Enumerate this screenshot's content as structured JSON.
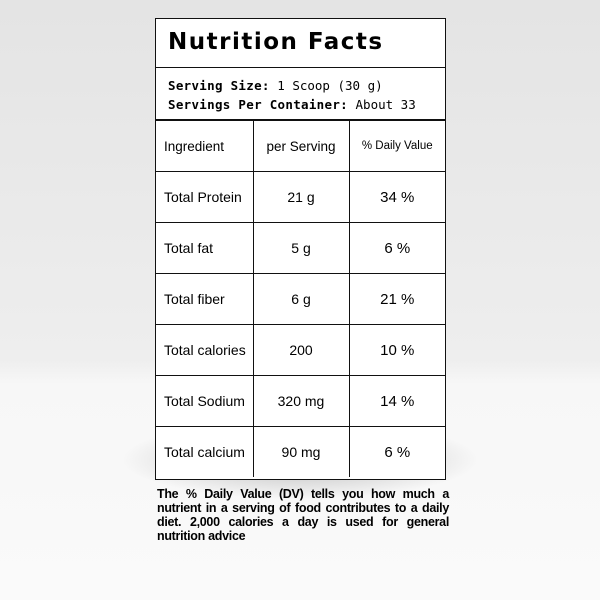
{
  "header": {
    "title": "Nutrition Facts"
  },
  "serving": {
    "size_label": "Serving Size:",
    "size_value": "1 Scoop (30 g)",
    "container_label": "Servings Per Container:",
    "container_value": "About 33"
  },
  "table": {
    "columns": [
      "Ingredient",
      "per Serving",
      "% Daily Value"
    ],
    "rows": [
      [
        "Total Protein",
        "21 g",
        "34 %"
      ],
      [
        "Total fat",
        "5 g",
        "6 %"
      ],
      [
        "Total fiber",
        "6 g",
        "21 %"
      ],
      [
        "Total calories",
        "200",
        "10 %"
      ],
      [
        "Total Sodium",
        "320 mg",
        "14 %"
      ],
      [
        "Total calcium",
        "90 mg",
        "6 %"
      ]
    ]
  },
  "footnote": "The % Daily Value (DV) tells you how much a nutrient in a serving of food contributes to a daily diet. 2,000 calories a day is used for general nutrition advice"
}
